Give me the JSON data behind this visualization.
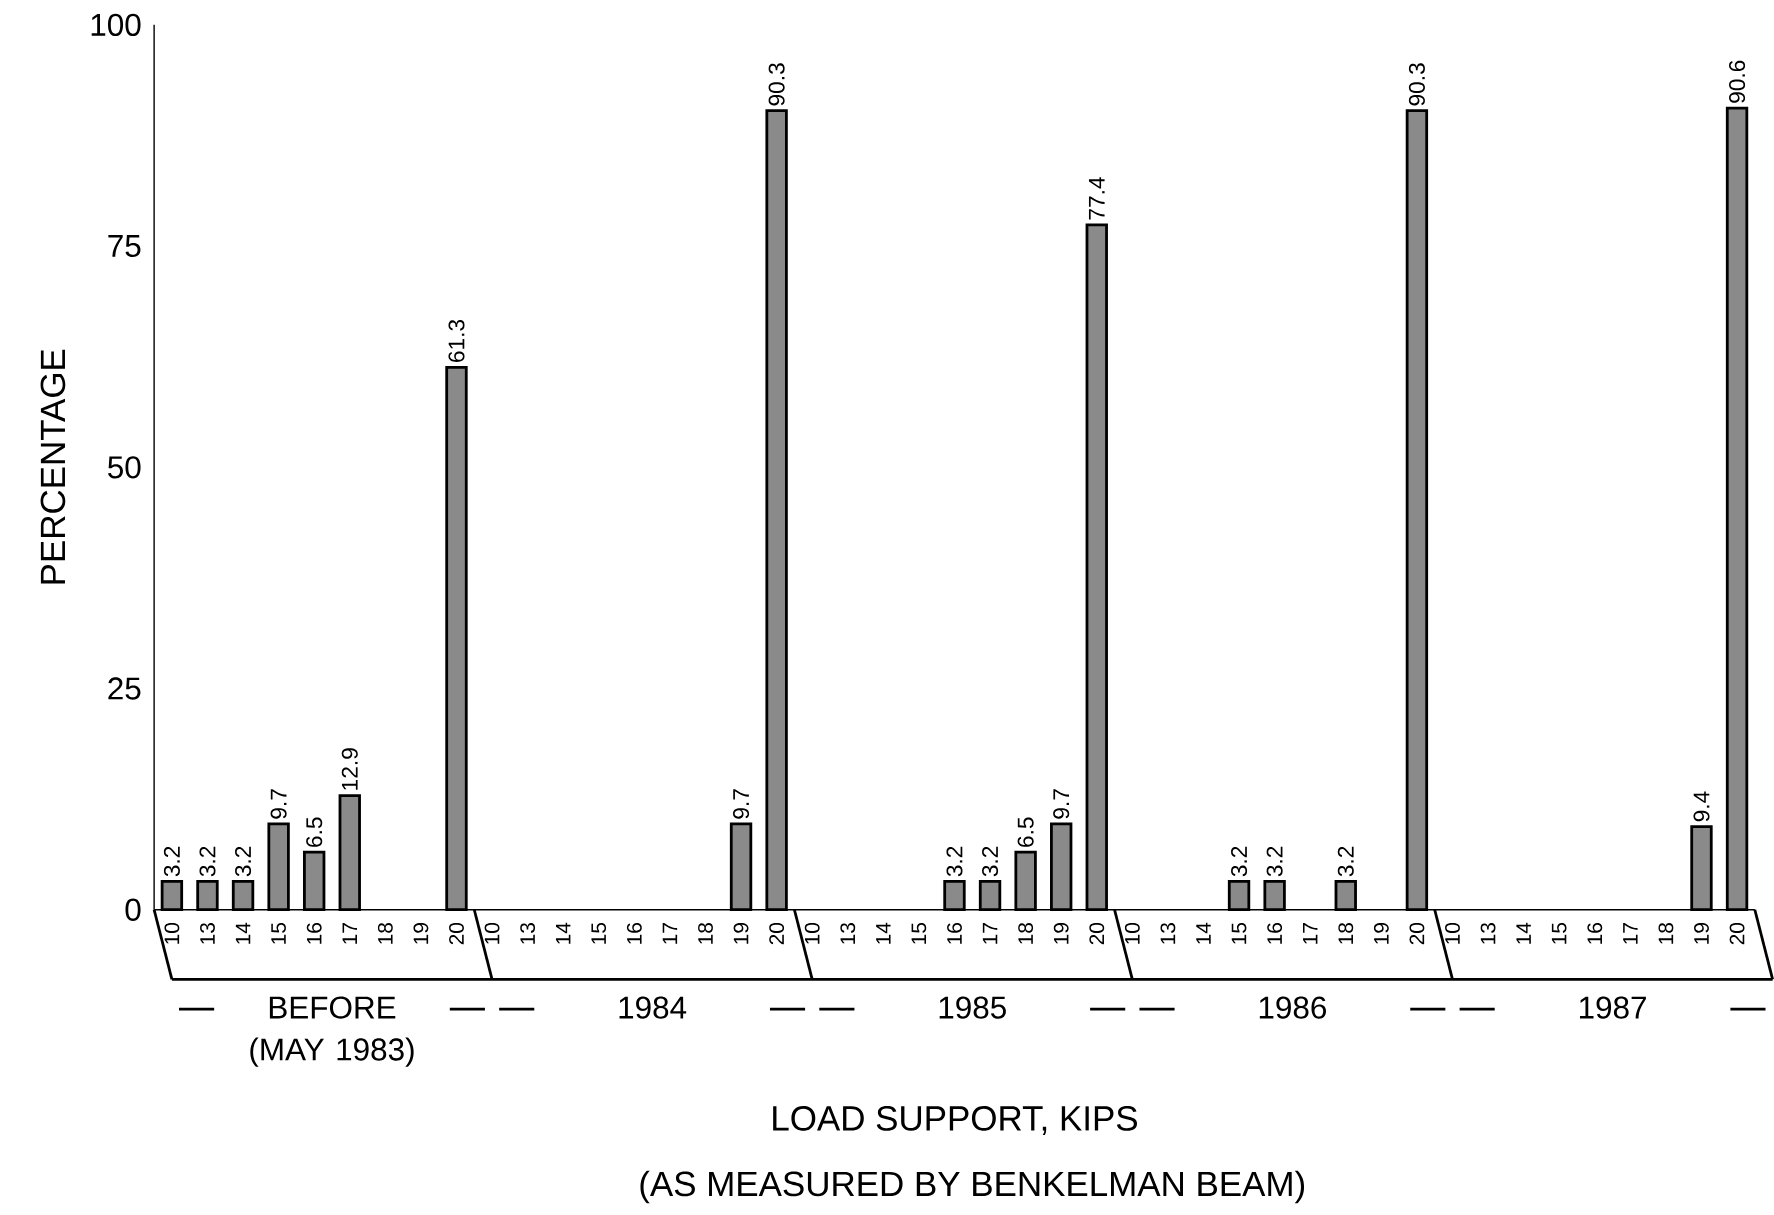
{
  "chart_data": {
    "type": "bar",
    "ylabel": "PERCENTAGE",
    "xlabel": "LOAD SUPPORT, KIPS",
    "categories": [
      "10",
      "13",
      "14",
      "15",
      "16",
      "17",
      "18",
      "19",
      "20",
      "10",
      "13",
      "14",
      "15",
      "16",
      "17",
      "18",
      "19",
      "20",
      "10",
      "13",
      "14",
      "15",
      "16",
      "17",
      "18",
      "19",
      "20",
      "10",
      "13",
      "14",
      "15",
      "16",
      "17",
      "18",
      "19",
      "20",
      "10",
      "13",
      "14",
      "15",
      "16",
      "17",
      "18",
      "19",
      "20"
    ],
    "values": [
      3.2,
      3.2,
      3.2,
      9.7,
      6.5,
      12.9,
      null,
      null,
      61.3,
      null,
      null,
      null,
      null,
      null,
      null,
      null,
      9.7,
      90.3,
      null,
      null,
      null,
      null,
      3.2,
      3.2,
      6.5,
      9.7,
      77.4,
      null,
      null,
      null,
      3.2,
      3.2,
      null,
      3.2,
      null,
      90.3,
      null,
      null,
      null,
      null,
      null,
      null,
      null,
      9.4,
      90.6
    ],
    "value_labels": [
      "3.2",
      "3.2",
      "3.2",
      "9.7",
      "6.5",
      "12.9",
      null,
      null,
      "61.3",
      null,
      null,
      null,
      null,
      null,
      null,
      null,
      "9.7",
      "90.3",
      null,
      null,
      null,
      null,
      "3.2",
      "3.2",
      "6.5",
      "9.7",
      "77.4",
      null,
      null,
      null,
      "3.2",
      "3.2",
      null,
      "3.2",
      null,
      "90.3",
      null,
      null,
      null,
      null,
      null,
      null,
      null,
      "9.4",
      "90.6"
    ],
    "color": "#8a8a8a",
    "ylim": [
      0,
      100
    ],
    "yticks": [
      0,
      25,
      50,
      75,
      100
    ],
    "annotations": [
      "BEFORE (MAY 1983)",
      "1984",
      "1985",
      "1986",
      "1987",
      "(AS MEASURED BY BENKELMAN BEAM)"
    ]
  }
}
